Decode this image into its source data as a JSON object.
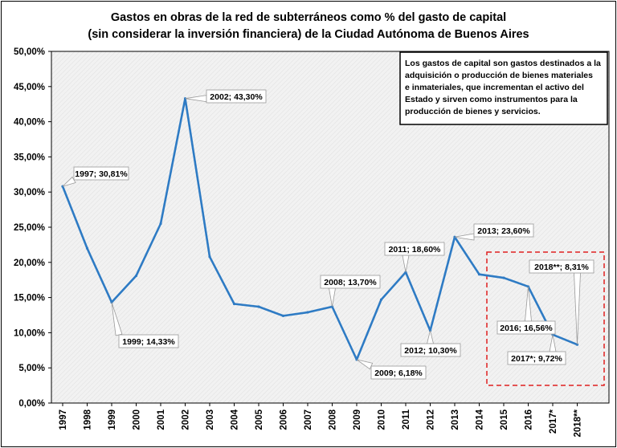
{
  "chart_data": {
    "type": "line",
    "title": [
      "Gastos en obras de la red de subterráneos como % del gasto de capital",
      "(sin considerar la inversión financiera) de la Ciudad Autónoma de Buenos Aires"
    ],
    "xlabel": "",
    "ylabel": "",
    "ylim": [
      0,
      50
    ],
    "yticks": [
      "0,00%",
      "5,00%",
      "10,00%",
      "15,00%",
      "20,00%",
      "25,00%",
      "30,00%",
      "35,00%",
      "40,00%",
      "45,00%",
      "50,00%"
    ],
    "categories": [
      "1997",
      "1998",
      "1999",
      "2000",
      "2001",
      "2002",
      "2003",
      "2004",
      "2005",
      "2006",
      "2007",
      "2008",
      "2009",
      "2010",
      "2011",
      "2012",
      "2013",
      "2014",
      "2015",
      "2016",
      "2017*",
      "2018**"
    ],
    "series": [
      {
        "name": "Gastos en obras de subterráneos",
        "color": "#2E7BC4",
        "values": [
          30.81,
          22.0,
          14.33,
          18.1,
          25.5,
          43.3,
          20.8,
          14.1,
          13.7,
          12.4,
          12.9,
          13.7,
          6.18,
          14.7,
          18.6,
          10.3,
          23.6,
          18.3,
          17.8,
          16.56,
          9.72,
          8.31
        ]
      }
    ],
    "callouts": [
      "1997; 30,81%",
      "1999; 14,33%",
      "2002; 43,30%",
      "2008; 13,70%",
      "2009; 6,18%",
      "2011; 18,60%",
      "2012; 10,30%",
      "2013; 23,60%",
      "2016; 16,56%",
      "2017*; 9,72%",
      "2018**; 8,31%"
    ],
    "note": [
      "Los gastos de capital son gastos destinados a la",
      "adquisición o producción de bienes materiales",
      "e inmateriales, que incrementan el activo del",
      "Estado y sirven como instrumentos para la",
      "producción de bienes y servicios."
    ],
    "highlight_color": "#E02020",
    "grid": false
  }
}
